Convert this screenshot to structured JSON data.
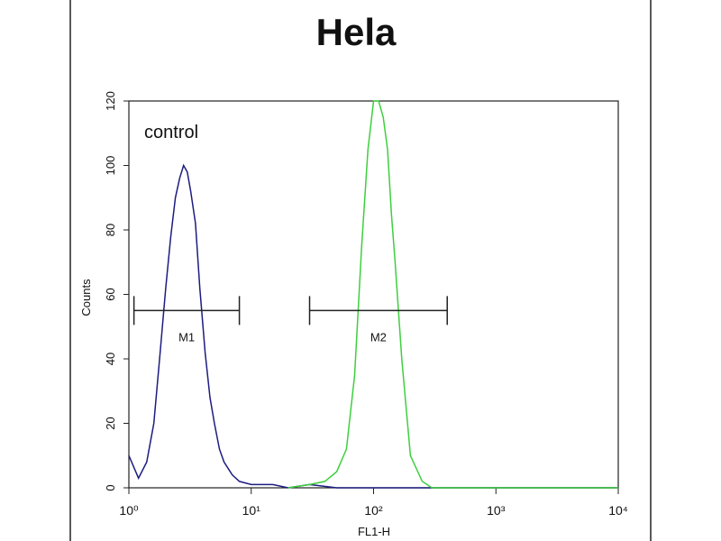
{
  "chart_data": {
    "type": "histogram-overlay",
    "title": "Hela",
    "xlabel": "FL1-H",
    "ylabel": "Counts",
    "annotation": "control",
    "xscale": "log",
    "xlim": [
      1,
      10000
    ],
    "xticks": [
      {
        "value": 1,
        "label": "10⁰"
      },
      {
        "value": 10,
        "label": "10¹"
      },
      {
        "value": 100,
        "label": "10²"
      },
      {
        "value": 1000,
        "label": "10³"
      },
      {
        "value": 10000,
        "label": "10⁴"
      }
    ],
    "ylim": [
      0,
      120
    ],
    "yticks": [
      0,
      20,
      40,
      60,
      80,
      100,
      120
    ],
    "series": [
      {
        "name": "control",
        "color": "#1c1c80",
        "x": [
          1,
          1.2,
          1.4,
          1.6,
          1.8,
          2.0,
          2.2,
          2.4,
          2.6,
          2.8,
          3.0,
          3.2,
          3.5,
          3.8,
          4.2,
          4.6,
          5,
          5.5,
          6,
          7,
          8,
          10,
          15,
          20,
          30,
          50,
          100,
          1000,
          10000
        ],
        "values": [
          10,
          3,
          8,
          20,
          42,
          62,
          78,
          90,
          96,
          100,
          98,
          92,
          82,
          62,
          42,
          28,
          20,
          12,
          8,
          4,
          2,
          1,
          1,
          0,
          1,
          0,
          0,
          0,
          0
        ]
      },
      {
        "name": "Hela",
        "color": "#3ecf3e",
        "x": [
          20,
          30,
          40,
          50,
          60,
          70,
          80,
          90,
          100,
          110,
          120,
          130,
          140,
          150,
          170,
          200,
          250,
          300,
          400,
          1000,
          10000
        ],
        "values": [
          0,
          1,
          2,
          5,
          12,
          35,
          75,
          105,
          120,
          120,
          115,
          105,
          85,
          70,
          40,
          10,
          2,
          0,
          0,
          0,
          0
        ]
      }
    ],
    "markers": [
      {
        "label": "M1",
        "x": [
          1.1,
          8
        ],
        "y": 55
      },
      {
        "label": "M2",
        "x": [
          30,
          400
        ],
        "y": 55
      }
    ]
  }
}
